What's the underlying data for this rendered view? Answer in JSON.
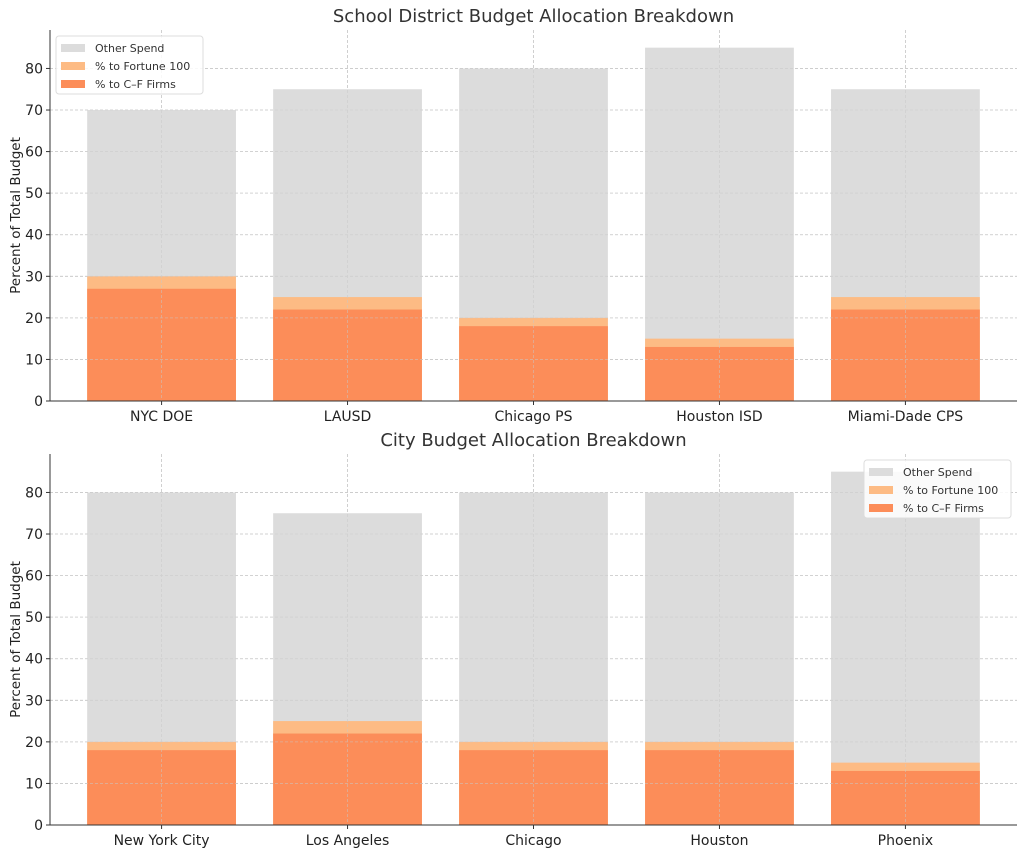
{
  "chart_data": [
    {
      "type": "bar",
      "title": "School District Budget Allocation Breakdown",
      "xlabel": "",
      "ylabel": "Percent of Total Budget",
      "ylim": [
        0,
        89.25
      ],
      "yticks": [
        0,
        10,
        20,
        30,
        40,
        50,
        60,
        70,
        80
      ],
      "grid": true,
      "legend": "top-left",
      "overlay": true,
      "categories": [
        "NYC DOE",
        "LAUSD",
        "Chicago PS",
        "Houston ISD",
        "Miami-Dade CPS"
      ],
      "series": [
        {
          "name": "Other Spend",
          "color": "#dcdcdc",
          "values": [
            70,
            75,
            80,
            85,
            75
          ]
        },
        {
          "name": "% to Fortune 100",
          "color": "#fdbb84",
          "values": [
            30,
            25,
            20,
            15,
            25
          ]
        },
        {
          "name": "% to C–F Firms",
          "color": "#fc8d59",
          "values": [
            27,
            22,
            18,
            13,
            22
          ]
        }
      ]
    },
    {
      "type": "bar",
      "title": "City Budget Allocation Breakdown",
      "xlabel": "",
      "ylabel": "Percent of Total Budget",
      "ylim": [
        0,
        89.25
      ],
      "yticks": [
        0,
        10,
        20,
        30,
        40,
        50,
        60,
        70,
        80
      ],
      "grid": true,
      "legend": "top-right",
      "overlay": true,
      "categories": [
        "New York City",
        "Los Angeles",
        "Chicago",
        "Houston",
        "Phoenix"
      ],
      "series": [
        {
          "name": "Other Spend",
          "color": "#dcdcdc",
          "values": [
            80,
            75,
            80,
            80,
            85
          ]
        },
        {
          "name": "% to Fortune 100",
          "color": "#fdbb84",
          "values": [
            20,
            25,
            20,
            20,
            15
          ]
        },
        {
          "name": "% to C–F Firms",
          "color": "#fc8d59",
          "values": [
            18,
            22,
            18,
            18,
            13
          ]
        }
      ]
    }
  ]
}
